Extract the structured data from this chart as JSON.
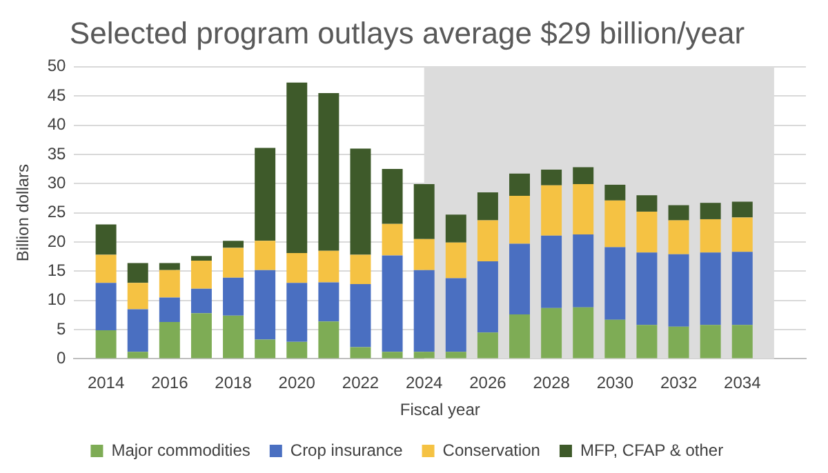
{
  "chart_data": {
    "type": "bar",
    "title": "Selected program outlays average $29 billion/year",
    "xlabel": "Fiscal year",
    "ylabel": "Billion dollars",
    "x": [
      2014,
      2015,
      2016,
      2017,
      2018,
      2019,
      2020,
      2021,
      2022,
      2023,
      2024,
      2025,
      2026,
      2027,
      2028,
      2029,
      2030,
      2031,
      2032,
      2033,
      2034
    ],
    "stacked": true,
    "series": [
      {
        "name": "Major commodities",
        "color": "#7eac55",
        "values": [
          4.9,
          1.2,
          6.3,
          7.8,
          7.4,
          3.3,
          2.9,
          6.4,
          2.0,
          1.2,
          1.2,
          1.2,
          4.5,
          7.6,
          8.7,
          8.8,
          6.7,
          5.8,
          5.5,
          5.8,
          5.8
        ]
      },
      {
        "name": "Crop insurance",
        "color": "#4a6fc1",
        "values": [
          8.1,
          7.3,
          4.2,
          4.2,
          6.5,
          11.9,
          10.1,
          6.7,
          10.8,
          16.5,
          14.0,
          12.6,
          12.2,
          12.1,
          12.4,
          12.5,
          12.4,
          12.4,
          12.4,
          12.4,
          12.5
        ]
      },
      {
        "name": "Conservation",
        "color": "#f5c243",
        "values": [
          4.8,
          4.5,
          4.7,
          4.8,
          5.1,
          5.0,
          5.1,
          5.4,
          5.0,
          5.4,
          5.3,
          6.1,
          7.0,
          8.2,
          8.6,
          8.6,
          8.0,
          7.0,
          5.8,
          5.7,
          5.9
        ]
      },
      {
        "name": "MFP, CFAP & other",
        "color": "#3e5a2a",
        "values": [
          5.2,
          3.4,
          1.2,
          0.8,
          1.2,
          15.9,
          29.2,
          27.0,
          18.2,
          9.4,
          9.4,
          4.8,
          4.8,
          3.8,
          2.7,
          2.9,
          2.7,
          2.8,
          2.6,
          2.8,
          2.7
        ]
      }
    ],
    "xlim": [
      2013,
      2036
    ],
    "xticks": [
      2014,
      2016,
      2018,
      2020,
      2022,
      2024,
      2026,
      2028,
      2030,
      2032,
      2034
    ],
    "ylim": [
      0,
      50
    ],
    "yticks": [
      0,
      5,
      10,
      15,
      20,
      25,
      30,
      35,
      40,
      45,
      50
    ],
    "bands": [
      {
        "axis": "x",
        "from": 2024,
        "to": 2035,
        "color": "#dcdcdc"
      }
    ],
    "grid": "y",
    "legend": "bottom"
  }
}
